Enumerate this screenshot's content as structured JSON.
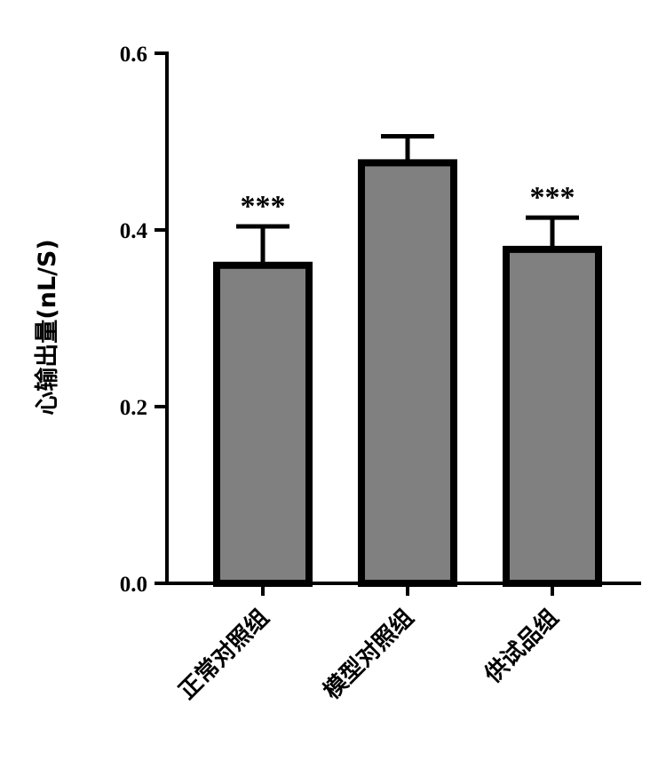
{
  "chart_data": {
    "type": "bar",
    "title": "",
    "xlabel": "",
    "ylabel": "心输出量(nL/S)",
    "categories": [
      "正常对照组",
      "模型对照组",
      "供试品组"
    ],
    "values": [
      0.36,
      0.476,
      0.378
    ],
    "errors": [
      0.044,
      0.03,
      0.036
    ],
    "significance": [
      "***",
      "",
      "***"
    ],
    "ylim": [
      0,
      0.6
    ],
    "yticks": [
      "0.0",
      "0.2",
      "0.4",
      "0.6"
    ],
    "bar_color": "#808080",
    "grid": false
  }
}
